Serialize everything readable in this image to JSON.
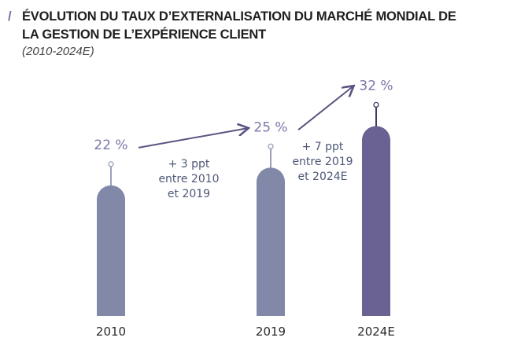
{
  "chart_data": {
    "type": "bar",
    "title": "ÉVOLUTION DU TAUX D’EXTERNALISATION DU MARCHÉ MONDIAL DE LA GESTION DE L’EXPÉRIENCE CLIENT",
    "subtitle": "(2010-2024E)",
    "categories": [
      "2010",
      "2019",
      "2024E"
    ],
    "values": [
      22,
      25,
      32
    ],
    "value_labels": [
      "22 %",
      "25 %",
      "32 %"
    ],
    "annotations": [
      {
        "lines": [
          "+ 3 ppt",
          "entre 2010",
          "et 2019"
        ]
      },
      {
        "lines": [
          "+ 7 ppt",
          "entre 2019",
          "et 2024E"
        ]
      }
    ],
    "colors": {
      "bar": "#8289a8",
      "bar_highlight": "#6b6294",
      "accent": "#7670a6",
      "label": "#7a78a8"
    },
    "grid": false
  }
}
